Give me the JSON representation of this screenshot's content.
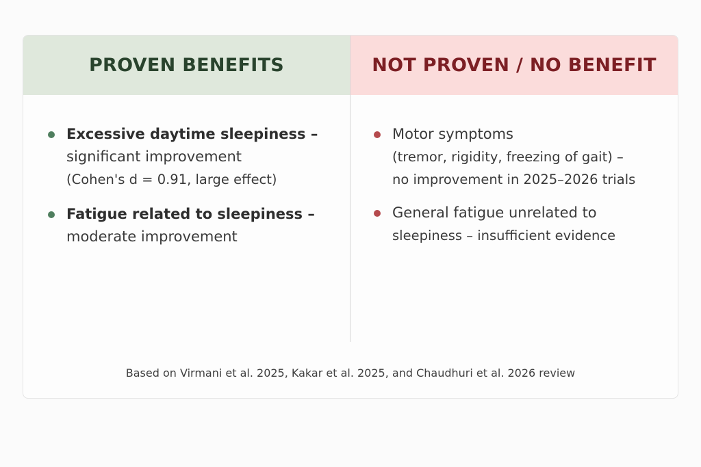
{
  "left_column": {
    "header": "PROVEN BENEFITS",
    "items": [
      {
        "title": "Excessive daytime sleepiness –",
        "line2": "significant improvement",
        "line3": "(Cohen's d = 0.91, large effect)"
      },
      {
        "title": "Fatigue related to sleepiness –",
        "line2": "moderate improvement"
      }
    ],
    "bullet_color": "#4f7e5e",
    "header_bg": "#dfe8dc"
  },
  "right_column": {
    "header": "NOT PROVEN / NO BENEFIT",
    "items": [
      {
        "line1": "Motor symptoms",
        "line2": "(tremor, rigidity, freezing of gait) –",
        "line3": "no improvement in 2025–2026 trials"
      },
      {
        "line1": "General fatigue unrelated to",
        "line2": "sleepiness – insufficient evidence"
      }
    ],
    "bullet_color": "#b54a4d",
    "header_bg": "#fbdcdb"
  },
  "footnote": "Based on Virmani et al. 2025, Kakar et al. 2025, and Chaudhuri et al. 2026 review"
}
